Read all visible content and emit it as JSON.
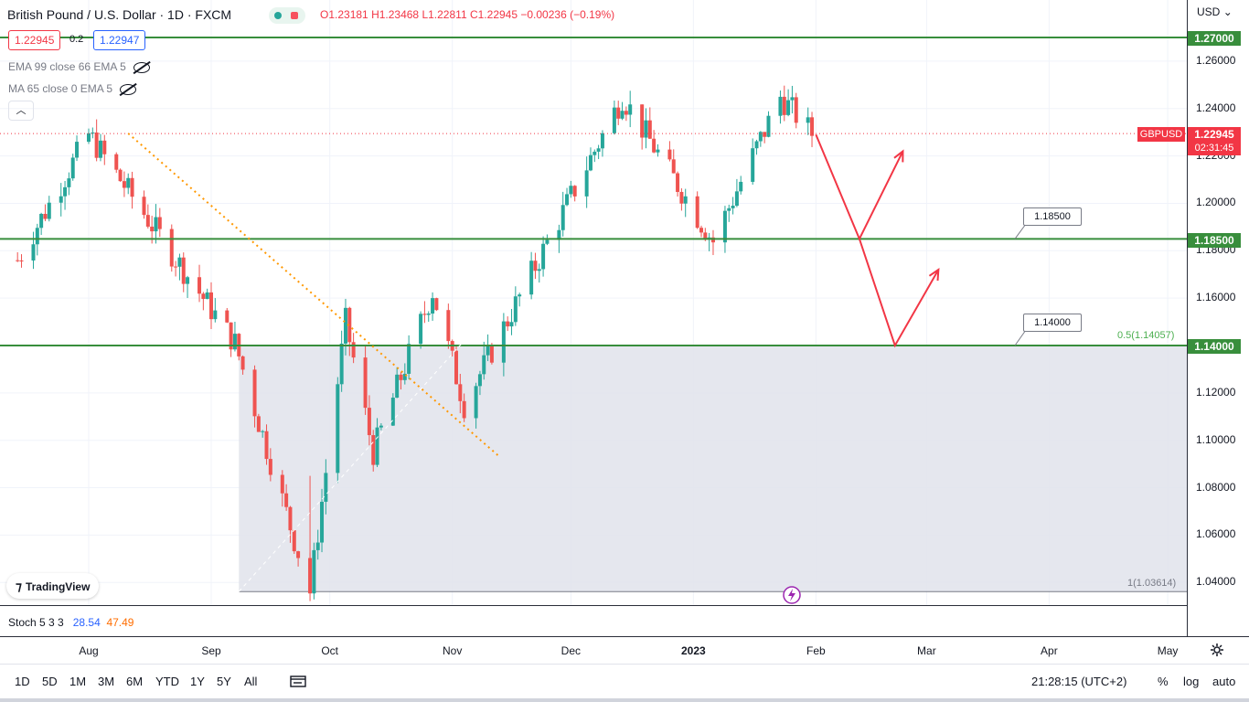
{
  "header": {
    "symbol_title": "British Pound / U.S. Dollar · 1D · FXCM",
    "open": "O1.23181",
    "high": "H1.23468",
    "low": "L1.22811",
    "close": "C1.22945",
    "change": "−0.00236 (−0.19%)",
    "sell_price": "1.22945",
    "spread": "0.2",
    "buy_price": "1.22947"
  },
  "indicators": {
    "ema": "EMA 99 close 66 EMA 5",
    "ma": "MA 65 close 0 EMA 5",
    "stoch_label": "Stoch 5 3 3",
    "stoch_k": "28.54",
    "stoch_d": "47.49"
  },
  "logo": {
    "text": "TradingView"
  },
  "price_axis": {
    "currency": "USD",
    "ticks": [
      "1.26000",
      "1.24000",
      "1.22000",
      "1.20000",
      "1.18000",
      "1.16000",
      "1.14000",
      "1.12000",
      "1.10000",
      "1.08000",
      "1.06000",
      "1.04000"
    ],
    "tag_1270": "1.27000",
    "tag_1185": "1.18500",
    "tag_1140": "1.14000",
    "current_symbol": "GBPUSD",
    "current_price": "1.22945",
    "countdown": "02:31:45"
  },
  "annotations": {
    "callout_1185": "1.18500",
    "callout_1140": "1.14000",
    "fib_05": "0.5(1.14057)",
    "fib_1": "1(1.03614)"
  },
  "time_axis": {
    "labels": [
      "Aug",
      "Sep",
      "Oct",
      "Nov",
      "Dec",
      "2023",
      "Feb",
      "Mar",
      "Apr",
      "May"
    ]
  },
  "bottom_toolbar": {
    "ranges": [
      "1D",
      "5D",
      "1M",
      "3M",
      "6M",
      "YTD",
      "1Y",
      "5Y",
      "All"
    ],
    "clock": "21:28:15 (UTC+2)",
    "percent": "%",
    "log": "log",
    "auto": "auto"
  },
  "colors": {
    "up": "#26a69a",
    "down": "#ef5350",
    "level_line": "#388e3c",
    "projection": "#f23645",
    "trendline": "#ff9800"
  },
  "chart_data": {
    "type": "candlestick",
    "title": "British Pound / U.S. Dollar · 1D · FXCM",
    "x_range": [
      "2022-07-01",
      "2023-05-31"
    ],
    "ylim": [
      1.034,
      1.281
    ],
    "horizontal_levels": [
      1.27,
      1.185,
      1.14
    ],
    "key_points": [
      {
        "date": "2022-07-14",
        "value": 1.176
      },
      {
        "date": "2022-08-01",
        "value": 1.229
      },
      {
        "date": "2022-09-07",
        "value": 1.141
      },
      {
        "date": "2022-09-26",
        "value": 1.0361
      },
      {
        "date": "2022-10-05",
        "value": 1.15
      },
      {
        "date": "2022-10-12",
        "value": 1.095
      },
      {
        "date": "2022-10-27",
        "value": 1.163
      },
      {
        "date": "2022-11-04",
        "value": 1.115
      },
      {
        "date": "2022-12-14",
        "value": 1.245
      },
      {
        "date": "2023-01-06",
        "value": 1.184
      },
      {
        "date": "2023-01-23",
        "value": 1.245
      },
      {
        "date": "2023-01-31",
        "value": 1.2295
      }
    ],
    "projection_path": [
      {
        "date": "2023-02-01",
        "value": 1.229
      },
      {
        "date": "2023-02-12",
        "value": 1.185
      },
      {
        "date": "2023-02-23",
        "value": 1.222
      }
    ],
    "projection_path_2": [
      {
        "date": "2023-02-12",
        "value": 1.185
      },
      {
        "date": "2023-02-21",
        "value": 1.14
      },
      {
        "date": "2023-03-04",
        "value": 1.172
      }
    ],
    "fibonacci": [
      {
        "level": "0.5",
        "value": 1.14057
      },
      {
        "level": "1",
        "value": 1.03614
      }
    ],
    "grid": true,
    "series": [
      {
        "name": "GBPUSD"
      }
    ]
  }
}
